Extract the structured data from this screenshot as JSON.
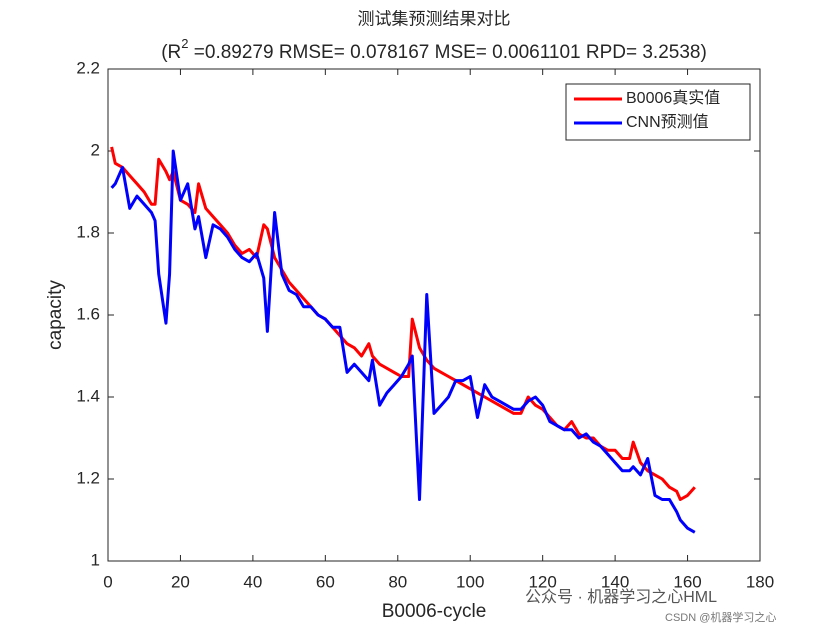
{
  "chart_data": {
    "type": "line",
    "title": "测试集预测结果对比",
    "subtitle_parts": [
      "(R",
      "2",
      " =0.89279 RMSE= 0.078167 MSE= 0.0061101 RPD= 3.2538)"
    ],
    "x_label": "B0006-cycle",
    "y_label": "capacity",
    "x": [
      1,
      2,
      4,
      6,
      8,
      10,
      12,
      13,
      14,
      16,
      17,
      18,
      20,
      22,
      24,
      25,
      27,
      29,
      31,
      33,
      35,
      37,
      39,
      41,
      43,
      44,
      46,
      48,
      50,
      52,
      54,
      56,
      58,
      60,
      62,
      64,
      66,
      68,
      70,
      72,
      73,
      75,
      77,
      79,
      81,
      83,
      84,
      86,
      88,
      90,
      92,
      94,
      96,
      98,
      100,
      102,
      104,
      106,
      108,
      110,
      112,
      114,
      116,
      118,
      120,
      122,
      124,
      126,
      128,
      130,
      132,
      134,
      136,
      138,
      140,
      142,
      144,
      145,
      147,
      149,
      151,
      153,
      155,
      157,
      158,
      160,
      162
    ],
    "series": [
      {
        "name": "B0006真实值",
        "color": "#ff0000",
        "values": [
          2.01,
          1.97,
          1.96,
          1.94,
          1.92,
          1.9,
          1.87,
          1.87,
          1.98,
          1.95,
          1.93,
          1.95,
          1.88,
          1.87,
          1.85,
          1.92,
          1.86,
          1.84,
          1.82,
          1.8,
          1.77,
          1.75,
          1.76,
          1.74,
          1.82,
          1.81,
          1.74,
          1.71,
          1.68,
          1.66,
          1.64,
          1.62,
          1.6,
          1.59,
          1.57,
          1.55,
          1.53,
          1.52,
          1.5,
          1.53,
          1.5,
          1.48,
          1.47,
          1.46,
          1.45,
          1.45,
          1.59,
          1.52,
          1.49,
          1.47,
          1.46,
          1.45,
          1.44,
          1.43,
          1.42,
          1.41,
          1.4,
          1.39,
          1.38,
          1.37,
          1.36,
          1.36,
          1.4,
          1.38,
          1.37,
          1.35,
          1.33,
          1.32,
          1.34,
          1.31,
          1.3,
          1.3,
          1.28,
          1.27,
          1.27,
          1.25,
          1.25,
          1.29,
          1.24,
          1.22,
          1.21,
          1.2,
          1.18,
          1.17,
          1.15,
          1.16,
          1.18
        ]
      },
      {
        "name": "CNN预测值",
        "color": "#0000ff",
        "values": [
          1.91,
          1.92,
          1.96,
          1.86,
          1.89,
          1.87,
          1.85,
          1.83,
          1.7,
          1.58,
          1.7,
          2.0,
          1.88,
          1.92,
          1.81,
          1.84,
          1.74,
          1.82,
          1.81,
          1.79,
          1.76,
          1.74,
          1.73,
          1.75,
          1.69,
          1.56,
          1.85,
          1.7,
          1.66,
          1.65,
          1.62,
          1.62,
          1.6,
          1.59,
          1.57,
          1.57,
          1.46,
          1.48,
          1.46,
          1.44,
          1.49,
          1.38,
          1.41,
          1.43,
          1.45,
          1.48,
          1.5,
          1.15,
          1.65,
          1.36,
          1.38,
          1.4,
          1.44,
          1.44,
          1.45,
          1.35,
          1.43,
          1.4,
          1.39,
          1.38,
          1.37,
          1.37,
          1.39,
          1.4,
          1.38,
          1.34,
          1.33,
          1.32,
          1.32,
          1.3,
          1.31,
          1.29,
          1.28,
          1.26,
          1.24,
          1.22,
          1.22,
          1.23,
          1.21,
          1.25,
          1.16,
          1.15,
          1.15,
          1.12,
          1.1,
          1.08,
          1.07
        ]
      }
    ],
    "xlim": [
      0,
      180
    ],
    "xticks": [
      0,
      20,
      40,
      60,
      80,
      100,
      120,
      140,
      160,
      180
    ],
    "ylim": [
      1,
      2.2
    ],
    "yticks": [
      1,
      1.2,
      1.4,
      1.6,
      1.8,
      2,
      2.2
    ],
    "legend": "northeast",
    "watermarks": [
      "公众号 · 机器学习之心HML",
      "CSDN @机器学习之心"
    ]
  }
}
